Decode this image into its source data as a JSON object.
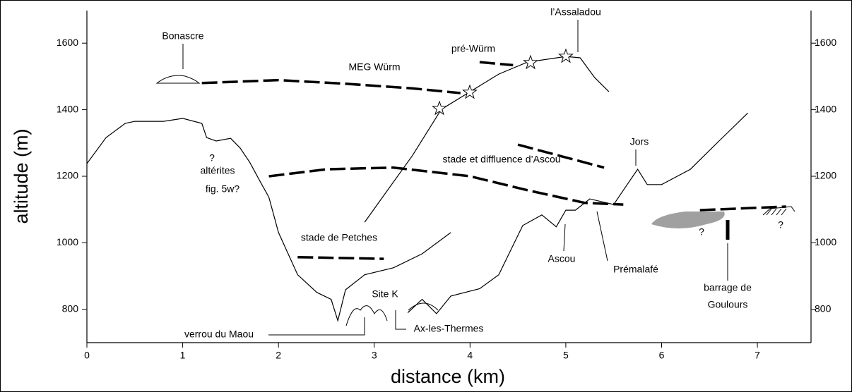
{
  "chart_data": {
    "type": "line",
    "xlabel": "distance (km)",
    "ylabel": "altitude (m)",
    "xlim": [
      0,
      7.56
    ],
    "ylim": [
      700,
      1700
    ],
    "xticks": [
      0,
      1,
      2,
      3,
      4,
      5,
      6,
      7
    ],
    "yticks": [
      800,
      1000,
      1200,
      1400,
      1600
    ],
    "y2lim": [
      700,
      1700
    ],
    "y2ticks": [
      800,
      1000,
      1200,
      1400,
      1600
    ],
    "color": "#000000",
    "series": [
      {
        "color": "#000000",
        "dash": false,
        "x": [
          0,
          0.2,
          0.4,
          0.5,
          0.8,
          1.0,
          1.2,
          1.25,
          1.35,
          1.5,
          1.6,
          1.7,
          1.8,
          1.9,
          2.0,
          2.2,
          2.4,
          2.55,
          2.62,
          2.7,
          2.9,
          3.2,
          3.5,
          3.8
        ],
        "values": [
          1238,
          1316,
          1359,
          1365,
          1365,
          1374,
          1359,
          1316,
          1306,
          1314,
          1285,
          1242,
          1189,
          1137,
          1031,
          904,
          851,
          830,
          766,
          859,
          904,
          925,
          967,
          1031
        ]
      },
      {
        "color": "#000000",
        "dash": false,
        "x": [
          3.35,
          3.5,
          3.65,
          3.8,
          4.1,
          4.3,
          4.55,
          4.75,
          4.9,
          5.0,
          5.1,
          5.25,
          5.5,
          5.65,
          5.75,
          5.85,
          6.0,
          6.3,
          6.6,
          6.9
        ],
        "values": [
          790,
          830,
          787,
          840,
          862,
          904,
          1052,
          1084,
          1048,
          1098,
          1098,
          1132,
          1115,
          1179,
          1221,
          1175,
          1175,
          1221,
          1306,
          1390
        ]
      },
      {
        "color": "#000000",
        "dash": false,
        "x": [
          2.9,
          3.4,
          3.7,
          4.0,
          4.3,
          4.6,
          5.0,
          5.15,
          5.3,
          5.45
        ],
        "values": [
          1062,
          1263,
          1401,
          1454,
          1507,
          1543,
          1560,
          1556,
          1497,
          1454
        ]
      },
      {
        "name": "MEG Würm",
        "color": "#000000",
        "dash": true,
        "x": [
          1.2,
          2.0,
          2.7,
          3.4,
          3.9
        ],
        "values": [
          1480,
          1489,
          1478,
          1464,
          1450
        ]
      },
      {
        "name": "pré-Würm",
        "color": "#000000",
        "dash": true,
        "x": [
          4.1,
          4.45
        ],
        "values": [
          1543,
          1534
        ]
      },
      {
        "name": "stade et diffluence d’Ascou",
        "color": "#000000",
        "dash": true,
        "x": [
          1.9,
          2.5,
          3.2,
          4.0,
          4.6,
          5.2,
          5.6,
          6.0,
          6.4,
          7.3
        ],
        "values": [
          1200,
          1221,
          1226,
          1200,
          1158,
          1120,
          1115,
          null,
          1098,
          1109
        ]
      },
      {
        "color": "#000000",
        "dash": true,
        "x": [
          4.5,
          5.4
        ],
        "values": [
          1295,
          1226
        ]
      },
      {
        "name": "stade de Petches",
        "color": "#000000",
        "dash": true,
        "x": [
          2.2,
          3.1
        ],
        "values": [
          957,
          952
        ]
      }
    ],
    "annotations": [
      "Bonascre",
      "l’Assaladou",
      "Jors",
      "altérites",
      "fig. 5w?",
      "?",
      "Site K",
      "verrou du Maou",
      "Ax-les-Thermes",
      "Ascou",
      "Prémalafé",
      "barrage de",
      "Goulours",
      "?",
      "?"
    ]
  }
}
